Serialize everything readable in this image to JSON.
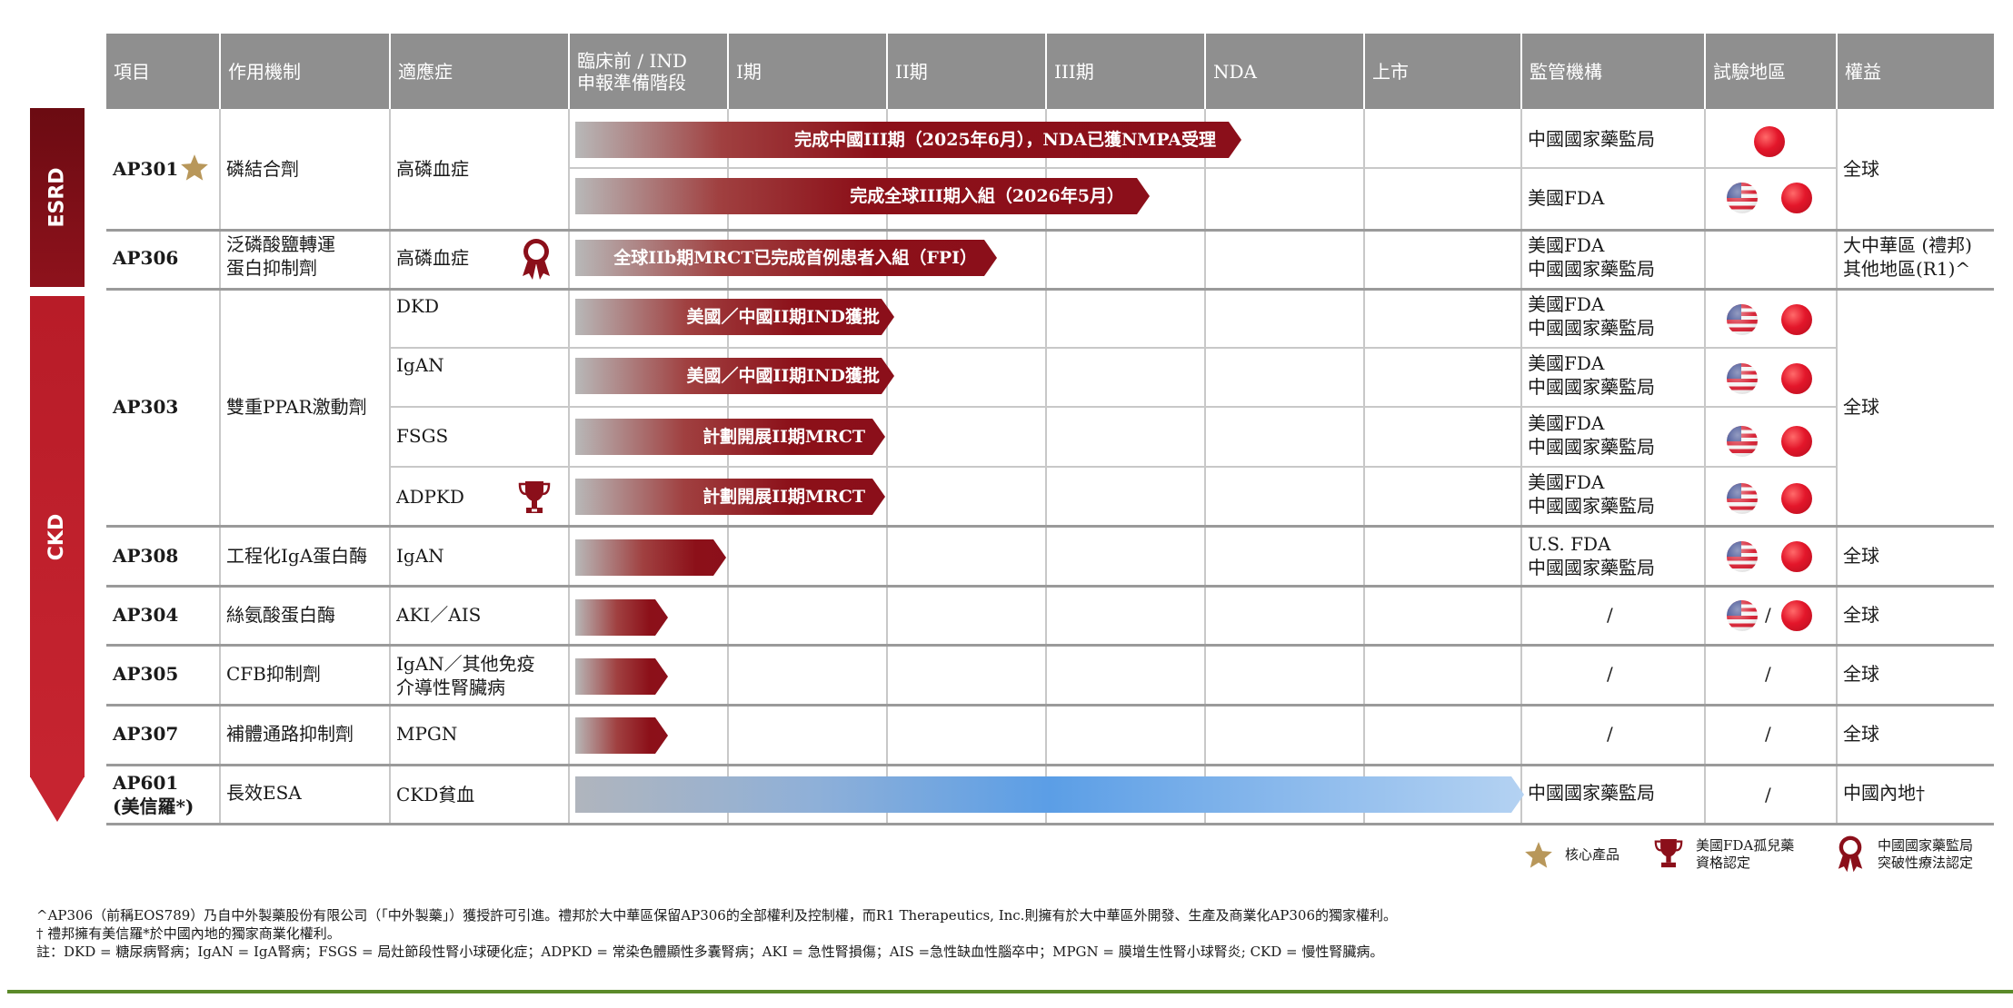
{
  "headers": {
    "project": "項目",
    "mechanism": "作用機制",
    "indication": "適應症",
    "preclinical_1": "臨床前 / IND",
    "preclinical_2": "申報準備階段",
    "phase1": "I期",
    "phase2": "II期",
    "phase3": "III期",
    "nda": "NDA",
    "launch": "上市",
    "regulator": "監管機構",
    "region": "試驗地區",
    "rights": "權益"
  },
  "groups": {
    "esrd": "ESRD",
    "ckd": "CKD"
  },
  "rows": {
    "ap301": {
      "name": "AP301",
      "mechanism": "磷結合劑",
      "indication": "高磷血症",
      "rights": "全球",
      "bar1": "完成中國III期（2025年6月），NDA已獲NMPA受理",
      "reg1": "中國國家藥監局",
      "bar2": "完成全球III期入組（2026年5月）",
      "reg2": "美國FDA"
    },
    "ap306": {
      "name": "AP306",
      "mechanism_1": "泛磷酸鹽轉運",
      "mechanism_2": "蛋白抑制劑",
      "indication": "高磷血症",
      "bar": "全球IIb期MRCT已完成首例患者入組（FPI）",
      "reg_1": "美國FDA",
      "reg_2": "中國國家藥監局",
      "rights_1": "大中華區 (禮邦)",
      "rights_2": "其他地區(R1)^"
    },
    "ap303": {
      "name": "AP303",
      "mechanism": "雙重PPAR激動劑",
      "rights": "全球",
      "subs": [
        {
          "indication": "DKD",
          "bar": "美國／中國II期IND獲批",
          "reg_1": "美國FDA",
          "reg_2": "中國國家藥監局"
        },
        {
          "indication": "IgAN",
          "bar": "美國／中國II期IND獲批",
          "reg_1": "美國FDA",
          "reg_2": "中國國家藥監局"
        },
        {
          "indication": "FSGS",
          "bar": "計劃開展II期MRCT",
          "reg_1": "美國FDA",
          "reg_2": "中國國家藥監局"
        },
        {
          "indication": "ADPKD",
          "bar": "計劃開展II期MRCT",
          "reg_1": "美國FDA",
          "reg_2": "中國國家藥監局"
        }
      ]
    },
    "ap308": {
      "name": "AP308",
      "mechanism": "工程化IgA蛋白酶",
      "indication": "IgAN",
      "reg_1": "U.S. FDA",
      "reg_2": "中國國家藥監局",
      "rights": "全球"
    },
    "ap304": {
      "name": "AP304",
      "mechanism": "絲氨酸蛋白酶",
      "indication": "AKI／AIS",
      "reg": "/",
      "region_sep": "/",
      "rights": "全球"
    },
    "ap305": {
      "name": "AP305",
      "mechanism": "CFB抑制劑",
      "indication_1": "IgAN／其他免疫",
      "indication_2": "介導性腎臟病",
      "reg": "/",
      "region": "/",
      "rights": "全球"
    },
    "ap307": {
      "name": "AP307",
      "mechanism": "補體通路抑制劑",
      "indication": "MPGN",
      "reg": "/",
      "region": "/",
      "rights": "全球"
    },
    "ap601": {
      "name_1": "AP601",
      "name_2": "(美信羅*)",
      "mechanism": "長效ESA",
      "indication": "CKD貧血",
      "reg": "中國國家藥監局",
      "region": "/",
      "rights": "中國內地†"
    }
  },
  "legend": {
    "core": "核心產品",
    "orphan_1": "美國FDA孤兒藥",
    "orphan_2": "資格認定",
    "btd_1": "中國國家藥監局",
    "btd_2": "突破性療法認定"
  },
  "notes": {
    "n1": "^AP306（前稱EOS789）乃自中外製藥股份有限公司（「中外製藥」）獲授許可引進。禮邦於大中華區保留AP306的全部權利及控制權，而R1 Therapeutics, Inc.則擁有於大中華區外開發、生產及商業化AP306的獨家權利。",
    "n2": "† 禮邦擁有美信羅*於中國內地的獨家商業化權利。",
    "n3": "註：DKD = 糖尿病腎病；IgAN = IgA腎病；FSGS = 局灶節段性腎小球硬化症；ADPKD = 常染色體顯性多囊腎病；AKI = 急性腎損傷；AIS =急性缺血性腦卒中；MPGN = 膜增生性腎小球腎炎; CKD = 慢性腎臟病。"
  },
  "colors": {
    "header": "#8f8f8f",
    "bar_dark": "#8b0f1a",
    "bar_light": "#b5b5b5",
    "esrd": "#7a0e16",
    "ckd": "#c0202c",
    "blue_bar": "#5a9de0",
    "footer_line": "#5b8a2a",
    "gold": "#b8975a"
  }
}
